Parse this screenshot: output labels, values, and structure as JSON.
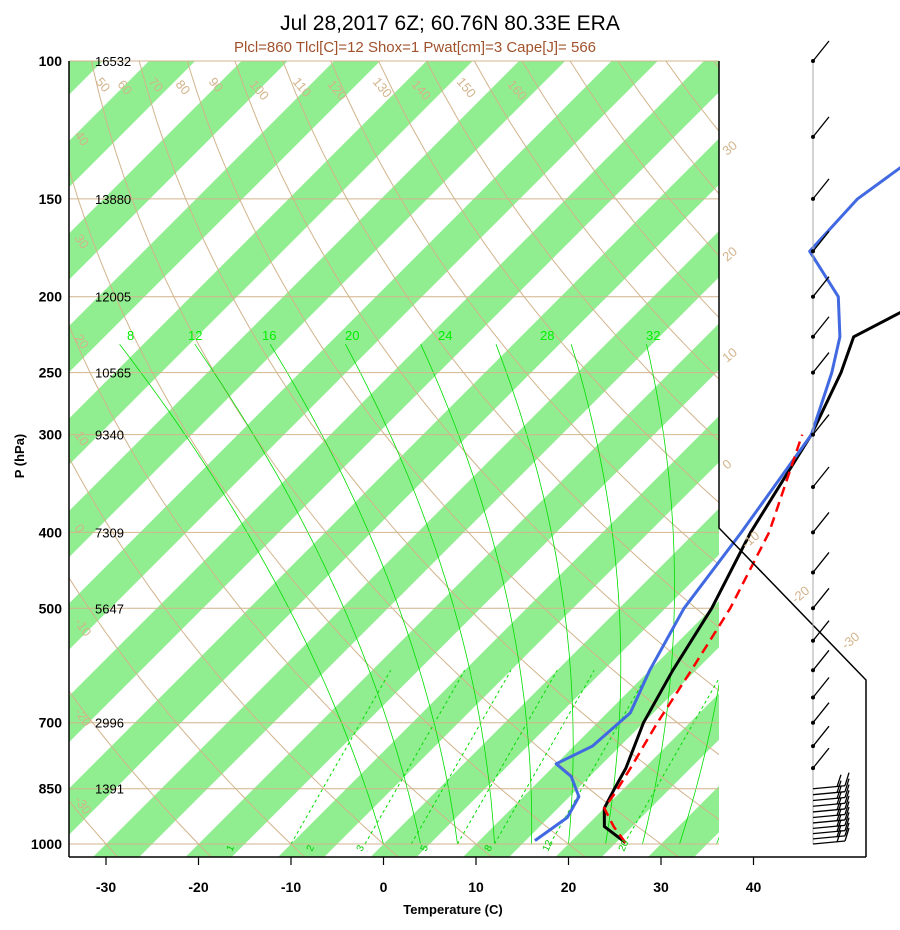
{
  "title": "Jul 28,2017 6Z; 60.76N 80.33E ERA",
  "subtitle": "Plcl=860 Tlcl[C]=12 Shox=1 Pwat[cm]=3 Cape[J]= 566",
  "colors": {
    "temperature": "#000000",
    "dewpoint": "#4169e1",
    "parcel": "#ff0000",
    "isotherm_band": "#90ee90",
    "adiabat": "#d2b48c",
    "mixing_ratio": "#00dd00"
  },
  "chart_data": {
    "type": "line",
    "title": "Jul 28,2017 6Z; 60.76N 80.33E ERA",
    "xlabel": "Temperature (C)",
    "ylabel": "P (hPa)",
    "xlim": [
      -33,
      52
    ],
    "ylim": [
      1000,
      100
    ],
    "y_scale": "log",
    "x_ticks": [
      "-30",
      "-20",
      "-10",
      "0",
      "10",
      "20",
      "30",
      "40"
    ],
    "pressure_levels": [
      {
        "p": "100",
        "height": "16532"
      },
      {
        "p": "150",
        "height": "13880"
      },
      {
        "p": "200",
        "height": "12005"
      },
      {
        "p": "250",
        "height": "10565"
      },
      {
        "p": "300",
        "height": "9340"
      },
      {
        "p": "400",
        "height": "7309"
      },
      {
        "p": "500",
        "height": "5647"
      },
      {
        "p": "700",
        "height": "2996"
      },
      {
        "p": "850",
        "height": "1391"
      },
      {
        "p": "1000",
        "height": ""
      }
    ],
    "isotherm_labels": [
      "-30",
      "-20",
      "-10",
      "0",
      "10",
      "20",
      "30"
    ],
    "dry_adiabat_labels_top": [
      "50",
      "60",
      "70",
      "80",
      "90",
      "100",
      "110",
      "120",
      "130",
      "140",
      "150",
      "160"
    ],
    "dry_adiabat_labels_left": [
      "40",
      "30",
      "20",
      "10",
      "0",
      "-10",
      "-20",
      "-30"
    ],
    "moist_adiabat_labels": [
      "8",
      "12",
      "16",
      "20",
      "24",
      "28",
      "32"
    ],
    "mixing_ratio_labels": [
      "1",
      "2",
      "3",
      "5",
      "8",
      "12",
      "20"
    ],
    "series": [
      {
        "name": "temperature",
        "points": [
          [
            26,
            996
          ],
          [
            22,
            950
          ],
          [
            20,
            900
          ],
          [
            19,
            850
          ],
          [
            18,
            800
          ],
          [
            15,
            700
          ],
          [
            12.5,
            600
          ],
          [
            10,
            500
          ],
          [
            6,
            400
          ],
          [
            2,
            300
          ],
          [
            -1.5,
            250
          ],
          [
            -4,
            225
          ],
          [
            0,
            200
          ],
          [
            8,
            175
          ],
          [
            14,
            150
          ],
          [
            22,
            125
          ],
          [
            30,
            100
          ]
        ]
      },
      {
        "name": "dewpoint",
        "points": [
          [
            16,
            990
          ],
          [
            17,
            925
          ],
          [
            16,
            870
          ],
          [
            13,
            820
          ],
          [
            10,
            790
          ],
          [
            12,
            750
          ],
          [
            12.5,
            680
          ],
          [
            10,
            600
          ],
          [
            7,
            500
          ],
          [
            5,
            400
          ],
          [
            2,
            300
          ],
          [
            -2.5,
            250
          ],
          [
            -5.5,
            225
          ],
          [
            -10,
            200
          ],
          [
            -18,
            175
          ],
          [
            -18.5,
            150
          ],
          [
            -16,
            125
          ],
          [
            -11,
            100
          ]
        ]
      },
      {
        "name": "parcel",
        "points": [
          [
            26,
            996
          ],
          [
            23,
            950
          ],
          [
            20,
            900
          ],
          [
            19.5,
            860
          ],
          [
            18.5,
            800
          ],
          [
            16.5,
            700
          ],
          [
            14.5,
            600
          ],
          [
            12,
            500
          ],
          [
            8,
            400
          ],
          [
            1,
            300
          ]
        ]
      }
    ],
    "wind_barbs": "vertical profile of wind barbs on the right panel from 1000 to 100 hPa"
  }
}
